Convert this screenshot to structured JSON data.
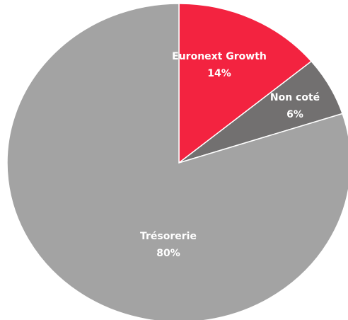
{
  "chart_data": {
    "type": "pie",
    "categories": [
      "Euronext Growth",
      "Non coté",
      "Trésorerie"
    ],
    "values": [
      14,
      6,
      80
    ],
    "value_labels": [
      "14%",
      "6%",
      "80%"
    ],
    "colors": [
      "#f32340",
      "#727070",
      "#a3a3a3"
    ]
  }
}
